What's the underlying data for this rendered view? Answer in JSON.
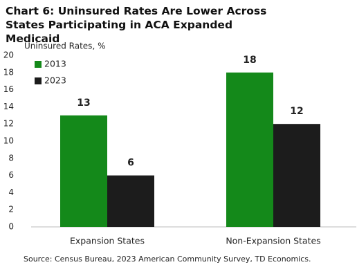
{
  "chart_data": {
    "type": "bar",
    "title": "Chart 6: Uninsured Rates Are Lower Across States Participating in ACA Expanded Medicaid",
    "y_label": "Uninsured Rates, %",
    "source": "Source: Census Bureau, 2023 American Community Survey, TD Economics.",
    "categories": [
      "Expansion States",
      "Non-Expansion States"
    ],
    "series": [
      {
        "name": "2013",
        "color": "#14891a",
        "values": [
          13,
          18
        ]
      },
      {
        "name": "2023",
        "color": "#1c1c1c",
        "values": [
          6,
          12
        ]
      }
    ],
    "ylim": [
      0,
      20
    ],
    "yticks": [
      0,
      2,
      4,
      6,
      8,
      10,
      12,
      14,
      16,
      18,
      20
    ],
    "grid": false,
    "legend": "upper-left"
  }
}
